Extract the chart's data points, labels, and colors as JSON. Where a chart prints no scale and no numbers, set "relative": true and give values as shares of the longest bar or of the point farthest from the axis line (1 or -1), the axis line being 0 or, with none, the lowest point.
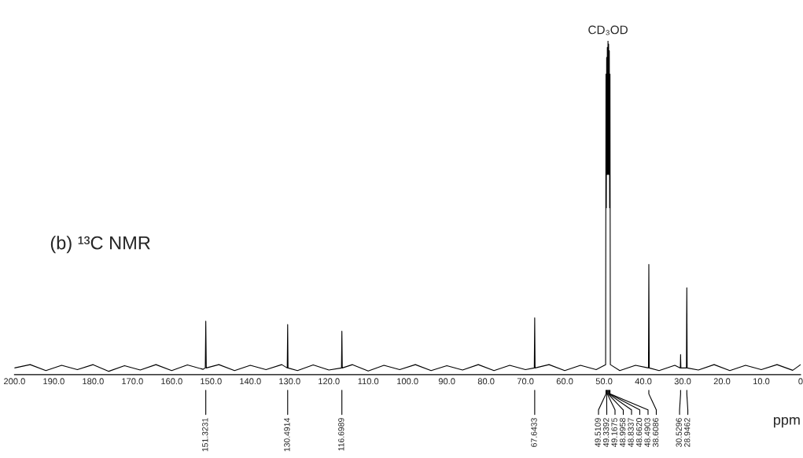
{
  "chart_data": {
    "type": "line",
    "title": "(b) ¹³C NMR",
    "xlabel": "ppm",
    "relative": true,
    "xlim": [
      200,
      0
    ],
    "xticks": [
      {
        "value": 200,
        "label": "200.0"
      },
      {
        "value": 190,
        "label": "190.0"
      },
      {
        "value": 180,
        "label": "180.0"
      },
      {
        "value": 170,
        "label": "170.0"
      },
      {
        "value": 160,
        "label": "160.0"
      },
      {
        "value": 150,
        "label": "150.0"
      },
      {
        "value": 140,
        "label": "140.0"
      },
      {
        "value": 130,
        "label": "130.0"
      },
      {
        "value": 120,
        "label": "120.0"
      },
      {
        "value": 110,
        "label": "110.0"
      },
      {
        "value": 100,
        "label": "100.0"
      },
      {
        "value": 90,
        "label": "90.0"
      },
      {
        "value": 80,
        "label": "80.0"
      },
      {
        "value": 70,
        "label": "70.0"
      },
      {
        "value": 60,
        "label": "60.0"
      },
      {
        "value": 50,
        "label": "50.0"
      },
      {
        "value": 40,
        "label": "40.0"
      },
      {
        "value": 30,
        "label": "30.0"
      },
      {
        "value": 20,
        "label": "20.0"
      },
      {
        "value": 10,
        "label": "10.0"
      },
      0
    ],
    "grid": false,
    "marker": "none",
    "line_style": "solid",
    "annotations": [
      "CD₃OD",
      "151.3231",
      "130.4914",
      "116.6989",
      "67.6433",
      "49.5109",
      "49.3392",
      "49.1675",
      "48.9958",
      "48.8337",
      "48.6620",
      "48.4903",
      "38.6086",
      "30.5296",
      "28.9462"
    ],
    "series": [
      {
        "color": "#000000",
        "x": [
          200,
          196,
          192,
          188,
          184,
          180,
          176,
          172,
          168,
          164,
          160,
          156,
          152,
          151.45,
          151.3231,
          151.2,
          148,
          144,
          140,
          136,
          132,
          130.6,
          130.4914,
          130.4,
          128,
          124,
          120,
          116.8,
          116.6989,
          116.6,
          114,
          110,
          106,
          102,
          98,
          94,
          90,
          86,
          82,
          78,
          74,
          70,
          67.75,
          67.6433,
          67.55,
          64,
          60,
          56,
          52,
          49.6,
          49.5109,
          49.42,
          49.3392,
          49.25,
          49.1675,
          49.08,
          48.9958,
          48.91,
          48.8337,
          48.75,
          48.662,
          48.58,
          48.4903,
          48.4,
          46,
          42,
          38.7,
          38.6086,
          38.5,
          36,
          32,
          30.6,
          30.5296,
          30.45,
          29.05,
          28.9462,
          28.85,
          26,
          22,
          18,
          14,
          10,
          6,
          2,
          0
        ],
        "values": [
          0.02,
          0.03,
          0.012,
          0.028,
          0.015,
          0.03,
          0.01,
          0.027,
          0.014,
          0.03,
          0.012,
          0.029,
          0.016,
          0.02,
          0.16,
          0.02,
          0.03,
          0.012,
          0.028,
          0.015,
          0.03,
          0.02,
          0.15,
          0.02,
          0.012,
          0.029,
          0.014,
          0.02,
          0.13,
          0.02,
          0.03,
          0.011,
          0.028,
          0.015,
          0.03,
          0.012,
          0.027,
          0.014,
          0.03,
          0.012,
          0.028,
          0.015,
          0.02,
          0.17,
          0.02,
          0.03,
          0.012,
          0.028,
          0.015,
          0.03,
          0.9,
          0.5,
          0.95,
          0.6,
          0.98,
          0.6,
          1.0,
          0.6,
          0.99,
          0.6,
          0.97,
          0.5,
          0.9,
          0.03,
          0.012,
          0.028,
          0.02,
          0.33,
          0.02,
          0.012,
          0.028,
          0.02,
          0.06,
          0.02,
          0.02,
          0.26,
          0.02,
          0.014,
          0.03,
          0.012,
          0.028,
          0.015,
          0.03,
          0.013,
          0.03
        ]
      }
    ]
  }
}
